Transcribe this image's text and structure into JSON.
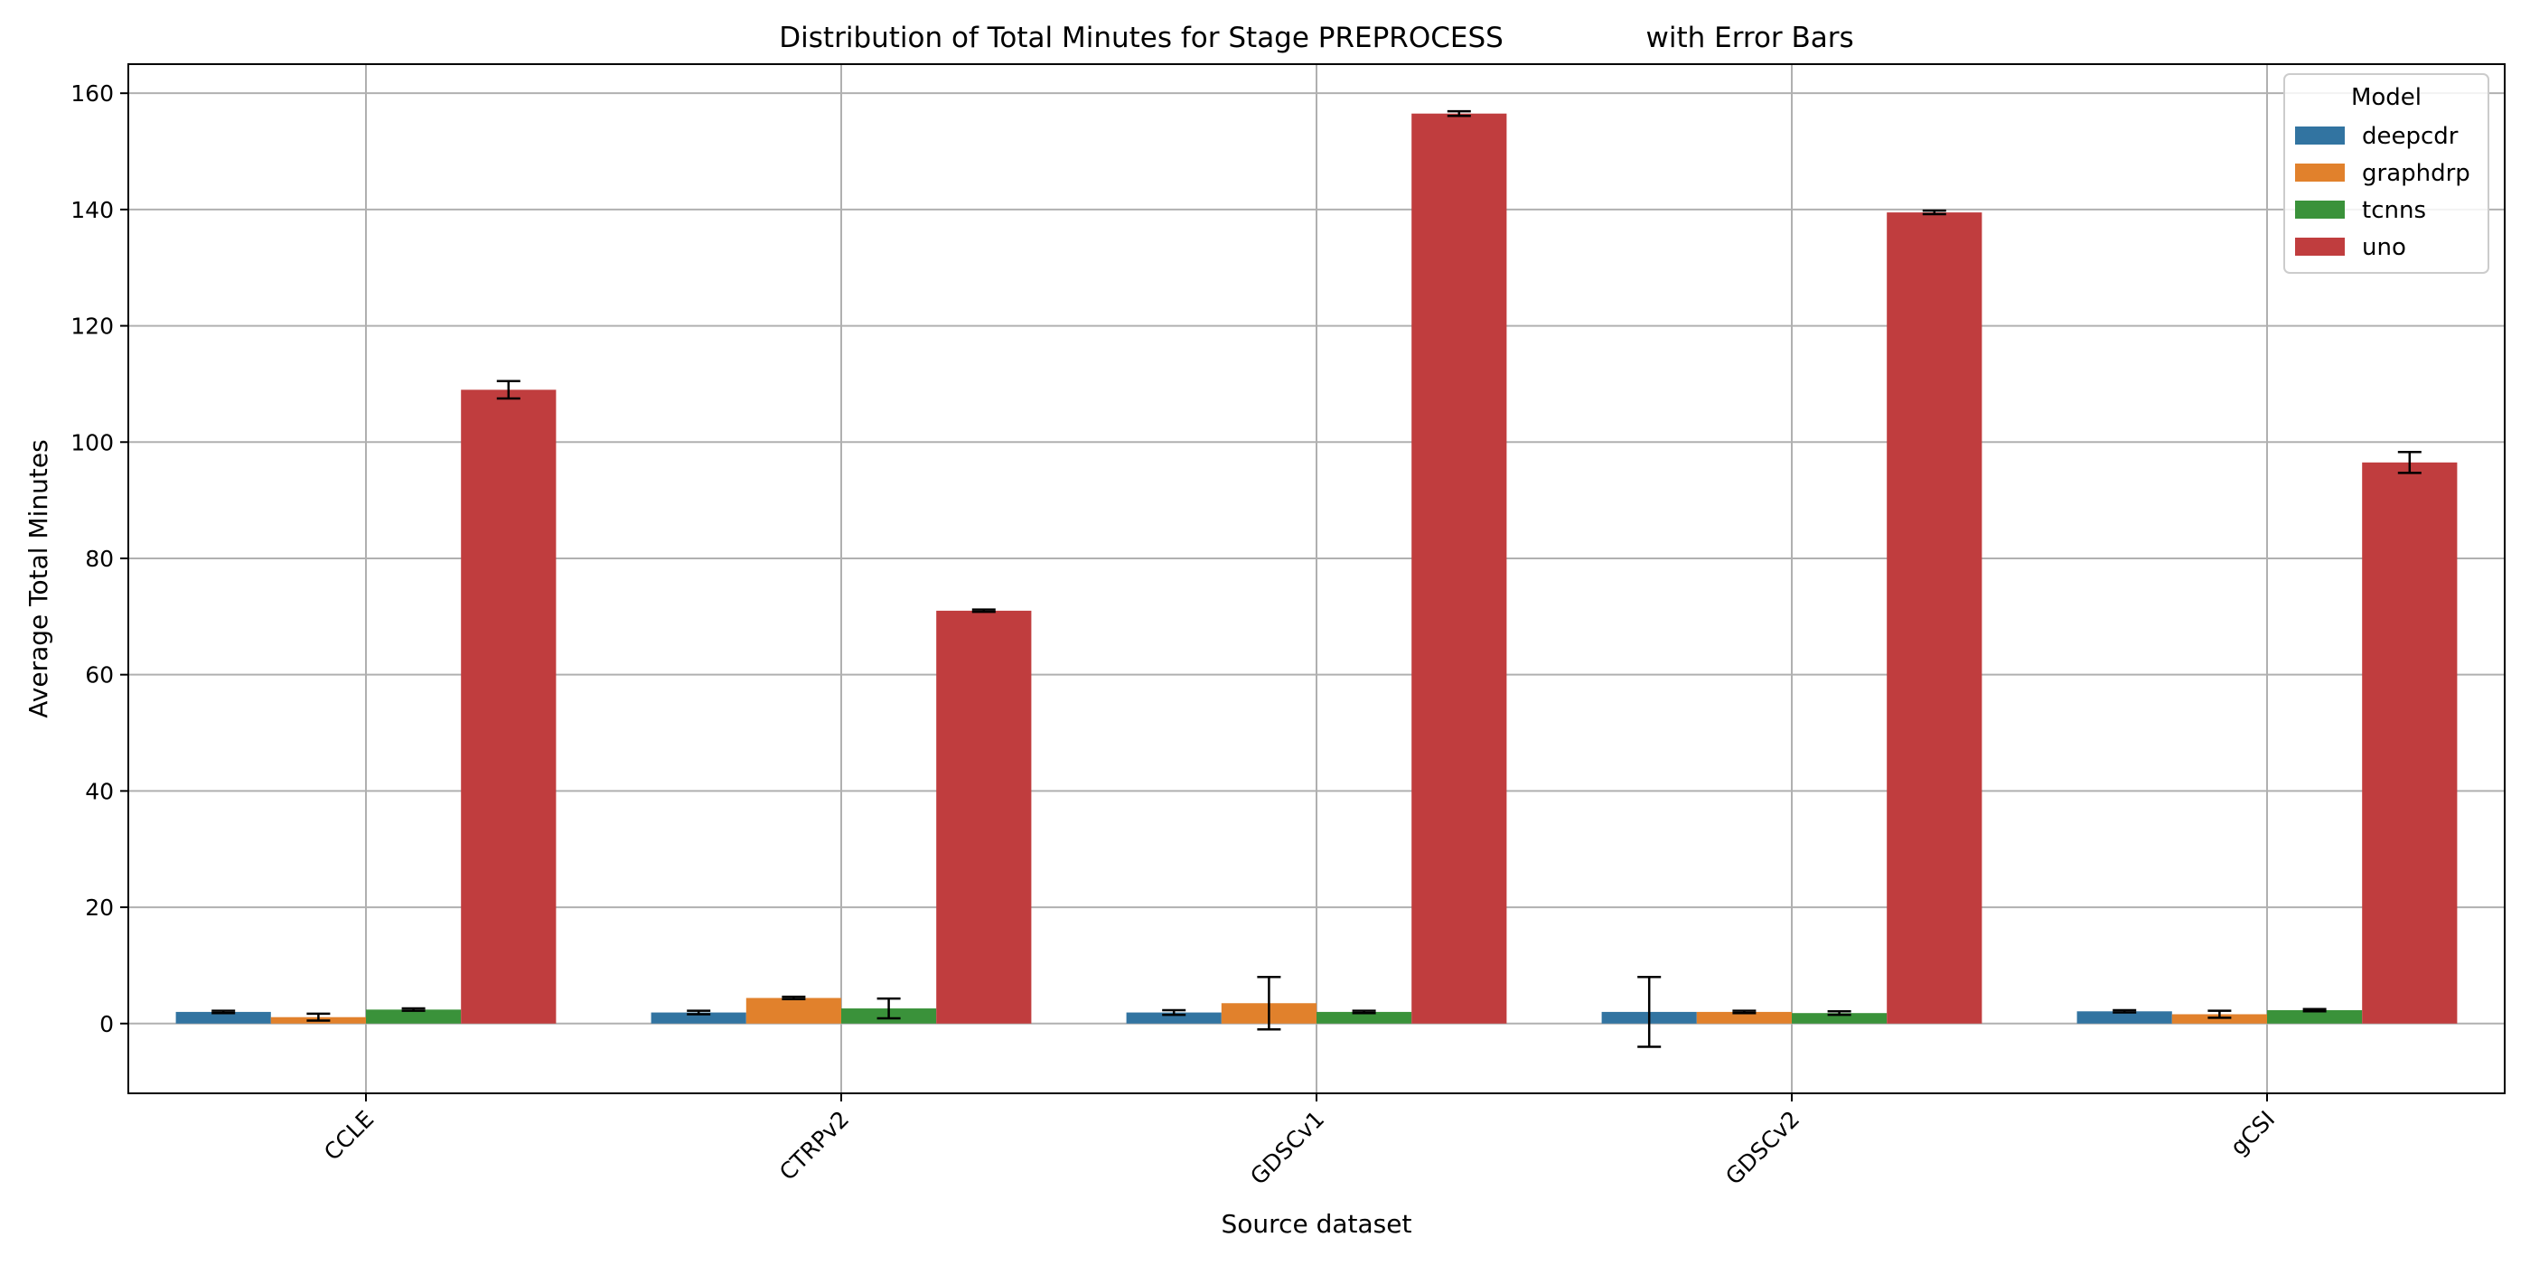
{
  "chart_data": {
    "type": "bar",
    "title": "Distribution of Total Minutes for Stage PREPROCESS                with Error Bars",
    "xlabel": "Source dataset",
    "ylabel": "Average Total Minutes",
    "ylim": [
      -12,
      165
    ],
    "yticks": [
      0,
      20,
      40,
      60,
      80,
      100,
      120,
      140,
      160
    ],
    "grid": true,
    "legend": {
      "title": "Model",
      "position": "top-right"
    },
    "categories": [
      "CCLE",
      "CTRPv2",
      "GDSCv1",
      "GDSCv2",
      "gCSI"
    ],
    "series": [
      {
        "name": "deepcdr",
        "color": "#3274a1",
        "values": [
          2.0,
          1.9,
          1.9,
          2.0,
          2.1
        ],
        "errors": [
          0.2,
          0.3,
          0.4,
          6.0,
          0.2
        ]
      },
      {
        "name": "graphdrp",
        "color": "#e1812c",
        "values": [
          1.1,
          4.4,
          3.5,
          2.0,
          1.6
        ],
        "errors": [
          0.6,
          0.2,
          4.5,
          0.2,
          0.6
        ]
      },
      {
        "name": "tcnns",
        "color": "#3a923a",
        "values": [
          2.4,
          2.6,
          2.0,
          1.8,
          2.3
        ],
        "errors": [
          0.2,
          1.7,
          0.2,
          0.3,
          0.2
        ]
      },
      {
        "name": "uno",
        "color": "#c03d3e",
        "values": [
          109.0,
          71.0,
          156.5,
          139.5,
          96.5
        ],
        "errors": [
          1.5,
          0.2,
          0.4,
          0.3,
          1.8
        ]
      }
    ]
  }
}
